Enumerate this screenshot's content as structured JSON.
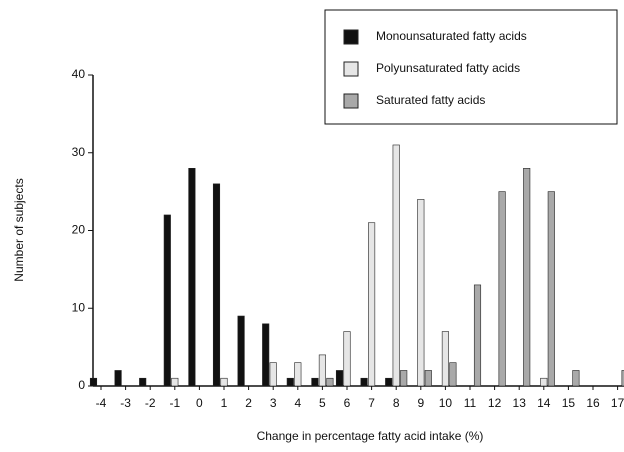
{
  "chart_data": {
    "type": "bar",
    "xlabel": "Change in percentage fatty acid intake (%)",
    "ylabel": "Number of subjects",
    "categories": [
      "-4",
      "-3",
      "-2",
      "-1",
      "0",
      "1",
      "2",
      "3",
      "4",
      "5",
      "6",
      "7",
      "8",
      "9",
      "10",
      "11",
      "12",
      "13",
      "14",
      "15",
      "16",
      "17"
    ],
    "series": [
      {
        "name": "Monounsaturated fatty acids",
        "color": "#111111",
        "values": [
          1,
          2,
          1,
          22,
          28,
          26,
          9,
          8,
          1,
          1,
          2,
          1,
          1,
          0,
          0,
          0,
          0,
          0,
          0,
          0,
          0,
          0
        ]
      },
      {
        "name": "Polyunsaturated fatty acids",
        "color": "#e6e6e6",
        "values": [
          0,
          0,
          0,
          1,
          0,
          1,
          0,
          3,
          3,
          4,
          7,
          21,
          31,
          24,
          7,
          0,
          0,
          0,
          1,
          0,
          0,
          0
        ]
      },
      {
        "name": "Saturated fatty acids",
        "color": "#a9a9a9",
        "values": [
          0,
          0,
          0,
          0,
          0,
          0,
          0,
          0,
          0,
          1,
          0,
          0,
          2,
          2,
          3,
          13,
          25,
          28,
          25,
          2,
          0,
          2
        ]
      }
    ],
    "ylim": [
      0,
      40
    ],
    "yticks": [
      0,
      10,
      20,
      30,
      40
    ],
    "legend": "upper right"
  }
}
